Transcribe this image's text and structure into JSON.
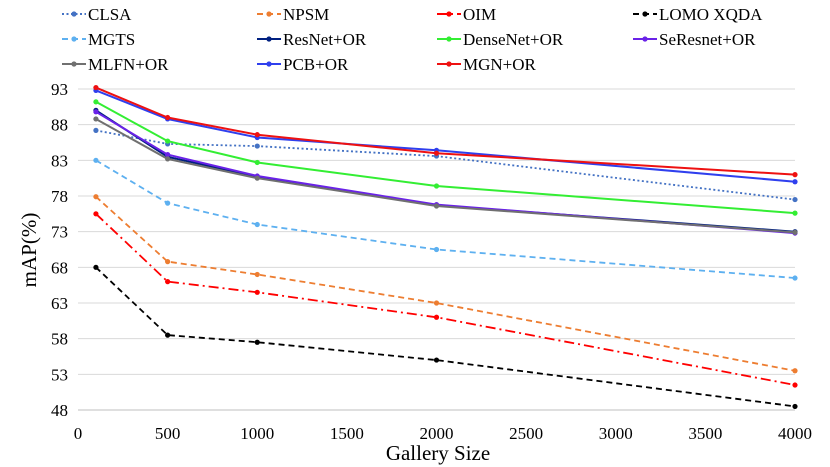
{
  "chart_data": {
    "type": "line",
    "title": "",
    "xlabel": "Gallery Size",
    "ylabel": "mAP(%)",
    "xlim": [
      0,
      4000
    ],
    "ylim": [
      48,
      93
    ],
    "x_ticks": [
      0,
      500,
      1000,
      1500,
      2000,
      2500,
      3000,
      3500,
      4000
    ],
    "y_ticks": [
      48,
      53,
      58,
      63,
      68,
      73,
      78,
      83,
      88,
      93
    ],
    "grid": true,
    "legend_position": "top",
    "x": [
      100,
      500,
      1000,
      2000,
      4000
    ],
    "series": [
      {
        "name": "CLSA",
        "values": [
          87.2,
          85.3,
          85.0,
          83.6,
          77.5
        ],
        "color": "#4472C4",
        "dash": "dotted"
      },
      {
        "name": "NPSM",
        "values": [
          77.9,
          68.8,
          67.0,
          63.0,
          53.5
        ],
        "color": "#ED7D31",
        "dash": "dashed"
      },
      {
        "name": "OIM",
        "values": [
          75.5,
          66.0,
          64.5,
          61.0,
          51.5
        ],
        "color": "#FF0000",
        "dash": "dashdot"
      },
      {
        "name": "LOMO XQDA",
        "values": [
          68.0,
          58.5,
          57.5,
          55.0,
          48.5
        ],
        "color": "#000000",
        "dash": "dashed"
      },
      {
        "name": "MGTS",
        "values": [
          83.0,
          77.0,
          74.0,
          70.5,
          66.5
        ],
        "color": "#5DB0F0",
        "dash": "dashed"
      },
      {
        "name": "ResNet+OR",
        "values": [
          90.0,
          83.5,
          80.7,
          76.7,
          73.0
        ],
        "color": "#002080",
        "dash": "solid"
      },
      {
        "name": "DenseNet+OR",
        "values": [
          91.2,
          85.7,
          82.7,
          79.4,
          75.6
        ],
        "color": "#33EE33",
        "dash": "solid"
      },
      {
        "name": "SeResnet+OR",
        "values": [
          89.8,
          83.8,
          80.8,
          76.8,
          72.8
        ],
        "color": "#6A22E8",
        "dash": "solid"
      },
      {
        "name": "MLFN+OR",
        "values": [
          88.8,
          83.2,
          80.5,
          76.6,
          72.9
        ],
        "color": "#707070",
        "dash": "solid"
      },
      {
        "name": "PCB+OR",
        "values": [
          92.8,
          88.8,
          86.2,
          84.4,
          80.0
        ],
        "color": "#2F3FEE",
        "dash": "solid"
      },
      {
        "name": "MGN+OR",
        "values": [
          93.2,
          89.0,
          86.6,
          84.0,
          81.0
        ],
        "color": "#EE1111",
        "dash": "solid"
      }
    ]
  }
}
